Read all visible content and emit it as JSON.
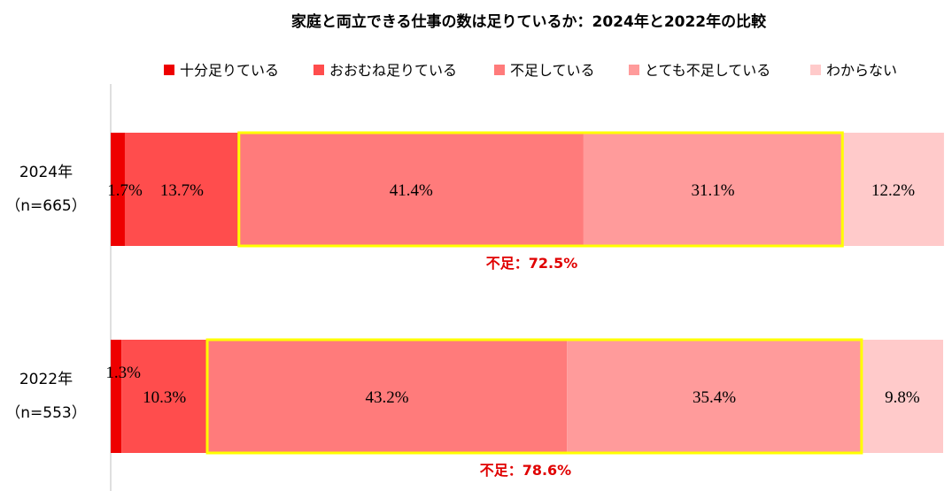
{
  "chart_data": {
    "type": "bar",
    "orientation": "horizontal",
    "stacked": true,
    "percent_stacked": true,
    "title": "家庭と両立できる仕事の数は足りているか：2024年と2022年の比較",
    "categories": [
      {
        "year": "2024年",
        "n": "（n=665）"
      },
      {
        "year": "2022年",
        "n": "（n=553）"
      }
    ],
    "series": [
      {
        "name": "十分足りている",
        "color": "#ee0000",
        "values": [
          1.7,
          1.3
        ],
        "labels": [
          "1.7%",
          "1.3%"
        ]
      },
      {
        "name": "おおむね足りている",
        "color": "#ff4d4d",
        "values": [
          13.7,
          10.3
        ],
        "labels": [
          "13.7%",
          "10.3%"
        ]
      },
      {
        "name": "不足している",
        "color": "#ff7b7b",
        "values": [
          41.4,
          43.2
        ],
        "labels": [
          "41.4%",
          "43.2%"
        ]
      },
      {
        "name": "とても不足している",
        "color": "#ff9b9b",
        "values": [
          31.1,
          35.4
        ],
        "labels": [
          "31.1%",
          "35.4%"
        ]
      },
      {
        "name": "わからない",
        "color": "#ffcaca",
        "values": [
          12.2,
          9.8
        ],
        "labels": [
          "12.2%",
          "9.8%"
        ]
      }
    ],
    "highlight": {
      "color": "#ffff00",
      "series_from": 2,
      "series_to": 3,
      "annotations": [
        "不足：72.5%",
        "不足：78.6%"
      ],
      "annotation_color": "#e00000"
    },
    "xlim": [
      0,
      100
    ],
    "grid": false,
    "legend_position": "top"
  }
}
